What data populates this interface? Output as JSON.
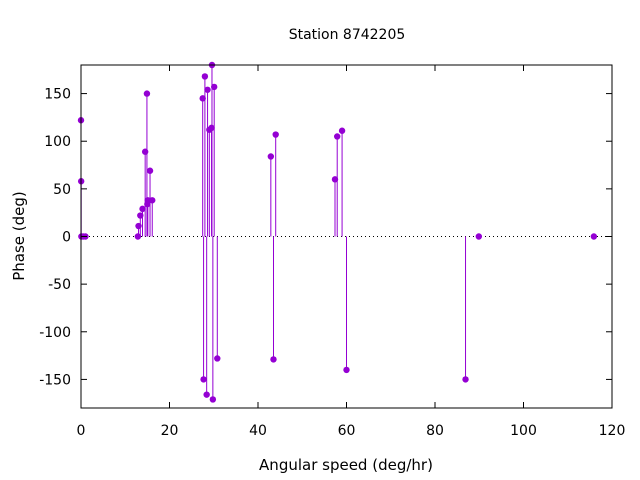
{
  "chart_data": {
    "type": "stem",
    "title": "Station 8742205",
    "xlabel": "Angular speed (deg/hr)",
    "ylabel": "Phase (deg)",
    "xlim": [
      0,
      120
    ],
    "ylim": [
      -180,
      180
    ],
    "xticks": [
      0,
      20,
      40,
      60,
      80,
      100,
      120
    ],
    "yticks": [
      -150,
      -100,
      -50,
      0,
      50,
      100,
      150
    ],
    "zero_line": "dotted",
    "grid": false,
    "color": "#9400d3",
    "points": [
      {
        "x": 0.0,
        "y": 122
      },
      {
        "x": 0.04,
        "y": 58
      },
      {
        "x": 0.08,
        "y": 0
      },
      {
        "x": 0.5,
        "y": 0
      },
      {
        "x": 1.0,
        "y": 0
      },
      {
        "x": 12.85,
        "y": 0
      },
      {
        "x": 13.0,
        "y": 11
      },
      {
        "x": 13.4,
        "y": 22
      },
      {
        "x": 13.9,
        "y": 29
      },
      {
        "x": 14.5,
        "y": 89
      },
      {
        "x": 14.9,
        "y": 150
      },
      {
        "x": 15.0,
        "y": 34
      },
      {
        "x": 15.1,
        "y": 38
      },
      {
        "x": 15.6,
        "y": 69
      },
      {
        "x": 16.1,
        "y": 38
      },
      {
        "x": 27.5,
        "y": 145
      },
      {
        "x": 27.7,
        "y": -150
      },
      {
        "x": 28.0,
        "y": 168
      },
      {
        "x": 28.4,
        "y": -166
      },
      {
        "x": 28.6,
        "y": 154
      },
      {
        "x": 29.0,
        "y": 112
      },
      {
        "x": 29.5,
        "y": 114
      },
      {
        "x": 29.6,
        "y": 180
      },
      {
        "x": 29.8,
        "y": -171
      },
      {
        "x": 30.1,
        "y": 157
      },
      {
        "x": 30.8,
        "y": -128
      },
      {
        "x": 42.9,
        "y": 84
      },
      {
        "x": 43.5,
        "y": -129
      },
      {
        "x": 44.0,
        "y": 107
      },
      {
        "x": 57.4,
        "y": 60
      },
      {
        "x": 57.9,
        "y": 105
      },
      {
        "x": 59.0,
        "y": 111
      },
      {
        "x": 60.0,
        "y": -140
      },
      {
        "x": 86.9,
        "y": -150
      },
      {
        "x": 89.9,
        "y": 0
      },
      {
        "x": 115.9,
        "y": 0
      }
    ]
  }
}
